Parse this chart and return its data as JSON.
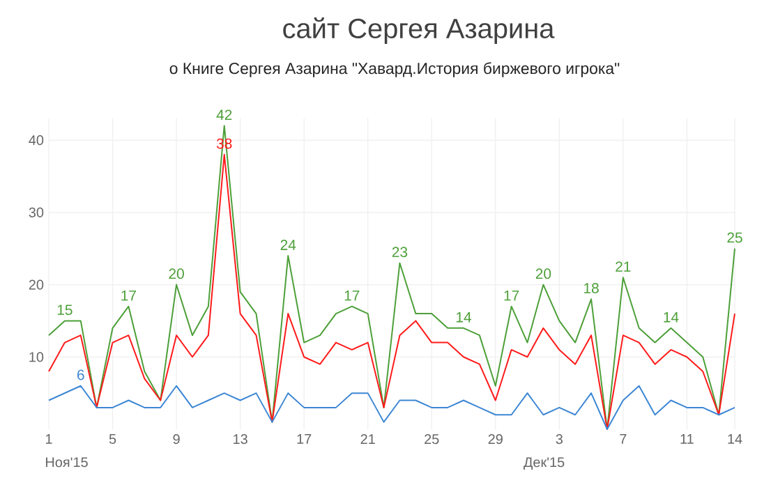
{
  "chart_data": {
    "type": "line",
    "title": "сайт Сергея Азарина",
    "subtitle": "о Книге Сергея Азарина \"Хавард.История биржевого игрока\"",
    "x": [
      "2015-11-01",
      "2015-11-02",
      "2015-11-03",
      "2015-11-04",
      "2015-11-05",
      "2015-11-06",
      "2015-11-07",
      "2015-11-08",
      "2015-11-09",
      "2015-11-10",
      "2015-11-11",
      "2015-11-12",
      "2015-11-13",
      "2015-11-14",
      "2015-11-15",
      "2015-11-16",
      "2015-11-17",
      "2015-11-18",
      "2015-11-19",
      "2015-11-20",
      "2015-11-21",
      "2015-11-22",
      "2015-11-23",
      "2015-11-24",
      "2015-11-25",
      "2015-11-26",
      "2015-11-27",
      "2015-11-28",
      "2015-11-29",
      "2015-11-30",
      "2015-12-01",
      "2015-12-02",
      "2015-12-03",
      "2015-12-04",
      "2015-12-05",
      "2015-12-06",
      "2015-12-07",
      "2015-12-08",
      "2015-12-09",
      "2015-12-10",
      "2015-12-11",
      "2015-12-12",
      "2015-12-13",
      "2015-12-14"
    ],
    "series": [
      {
        "color": "#4c9f38",
        "values": [
          13,
          15,
          15,
          3,
          14,
          17,
          8,
          4,
          20,
          13,
          17,
          42,
          19,
          16,
          1,
          24,
          12,
          13,
          16,
          17,
          16,
          3,
          23,
          16,
          16,
          14,
          14,
          13,
          6,
          17,
          12,
          20,
          15,
          12,
          18,
          0,
          21,
          14,
          12,
          14,
          12,
          10,
          2,
          25
        ],
        "value_labels": [
          null,
          "15",
          null,
          null,
          null,
          "17",
          null,
          null,
          "20",
          null,
          null,
          "42",
          null,
          null,
          null,
          "24",
          null,
          null,
          null,
          "17",
          null,
          null,
          "23",
          null,
          null,
          null,
          "14",
          null,
          null,
          "17",
          null,
          "20",
          null,
          null,
          "18",
          null,
          "21",
          null,
          null,
          "14",
          null,
          null,
          null,
          "25"
        ]
      },
      {
        "color": "#ff1a1a",
        "values": [
          8,
          12,
          13,
          3,
          12,
          13,
          7,
          4,
          13,
          10,
          13,
          38,
          16,
          13,
          1,
          16,
          10,
          9,
          12,
          11,
          12,
          3,
          13,
          15,
          12,
          12,
          10,
          9,
          4,
          11,
          10,
          14,
          11,
          9,
          13,
          0,
          13,
          12,
          9,
          11,
          10,
          8,
          2,
          16
        ],
        "value_labels": [
          null,
          null,
          null,
          null,
          null,
          null,
          null,
          null,
          null,
          null,
          null,
          "38",
          null,
          null,
          null,
          null,
          null,
          null,
          null,
          null,
          null,
          null,
          null,
          null,
          null,
          null,
          null,
          null,
          null,
          null,
          null,
          null,
          null,
          null,
          null,
          null,
          null,
          null,
          null,
          null,
          null,
          null,
          null,
          null
        ]
      },
      {
        "color": "#3d87d4",
        "values": [
          4,
          5,
          6,
          3,
          3,
          4,
          3,
          3,
          6,
          3,
          4,
          5,
          4,
          5,
          1,
          5,
          3,
          3,
          3,
          5,
          5,
          1,
          4,
          4,
          3,
          3,
          4,
          3,
          2,
          2,
          5,
          2,
          3,
          2,
          5,
          0,
          4,
          6,
          2,
          4,
          3,
          3,
          2,
          3
        ],
        "value_labels": [
          null,
          null,
          "6",
          null,
          null,
          null,
          null,
          null,
          null,
          null,
          null,
          null,
          null,
          null,
          null,
          null,
          null,
          null,
          null,
          null,
          null,
          null,
          null,
          null,
          null,
          null,
          null,
          null,
          null,
          null,
          null,
          null,
          null,
          null,
          null,
          null,
          null,
          null,
          null,
          null,
          null,
          null,
          null,
          null
        ]
      }
    ],
    "xlim": [
      "2015-11-01",
      "2015-12-14"
    ],
    "xticks": [
      {
        "value": "2015-11-01",
        "label": "1"
      },
      {
        "value": "2015-11-05",
        "label": "5"
      },
      {
        "value": "2015-11-09",
        "label": "9"
      },
      {
        "value": "2015-11-13",
        "label": "13"
      },
      {
        "value": "2015-11-17",
        "label": "17"
      },
      {
        "value": "2015-11-21",
        "label": "21"
      },
      {
        "value": "2015-11-25",
        "label": "25"
      },
      {
        "value": "2015-11-29",
        "label": "29"
      },
      {
        "value": "2015-12-03",
        "label": "3"
      },
      {
        "value": "2015-12-07",
        "label": "7"
      },
      {
        "value": "2015-12-11",
        "label": "11"
      },
      {
        "value": "2015-12-14",
        "label": "14"
      }
    ],
    "ylim": [
      0,
      43
    ],
    "yticks": [
      10,
      20,
      30,
      40
    ],
    "annotations": [
      "Ноя'15",
      "Дек'15"
    ],
    "grid": true,
    "marker": "none",
    "line_style": "solid"
  }
}
